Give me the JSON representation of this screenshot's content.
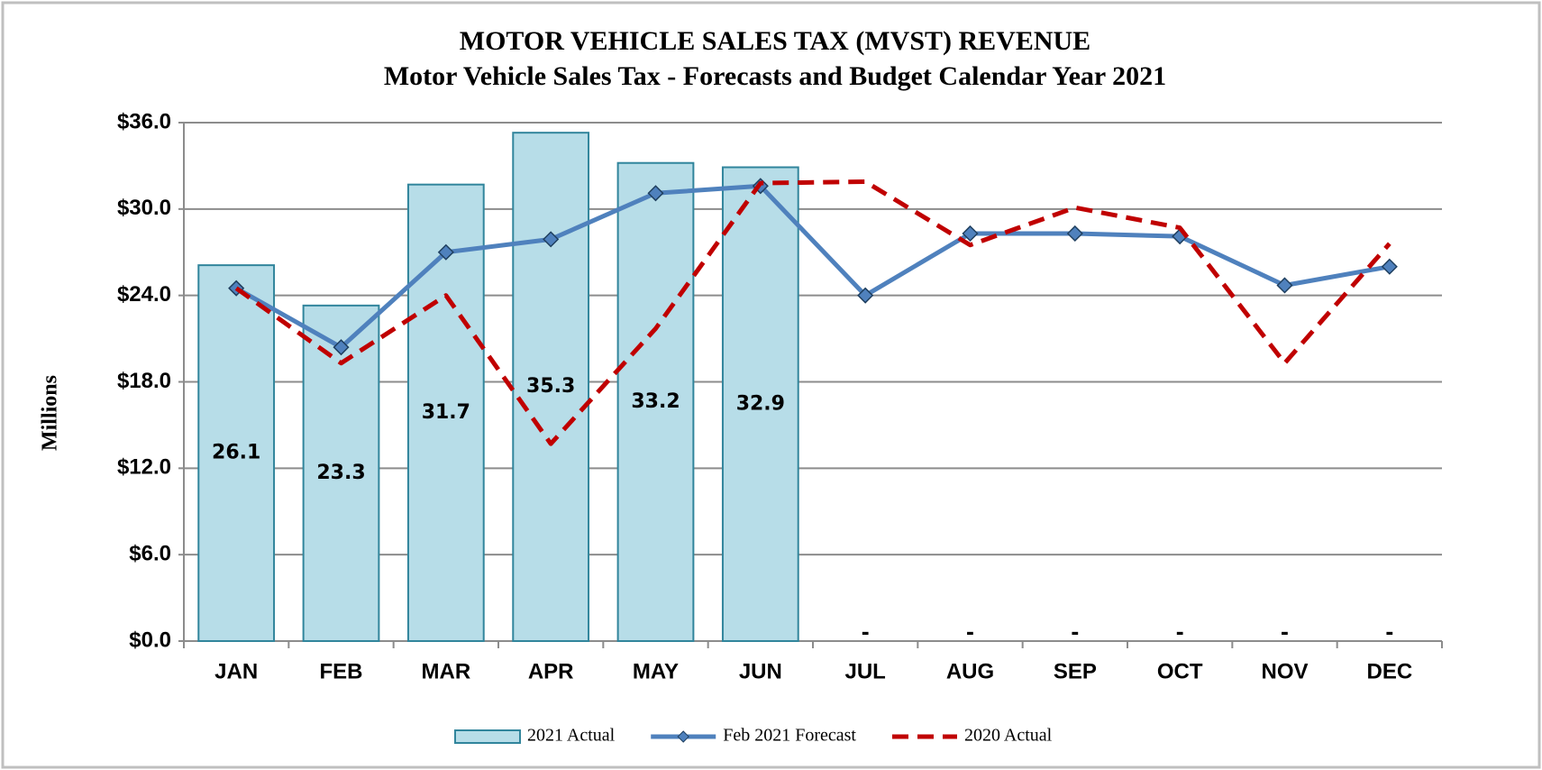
{
  "chart_data": {
    "type": "bar_line",
    "title": "MOTOR VEHICLE SALES TAX (MVST) REVENUE",
    "subtitle": "Motor Vehicle Sales Tax - Forecasts and Budget Calendar Year 2021",
    "ylabel": "Millions",
    "categories": [
      "JAN",
      "FEB",
      "MAR",
      "APR",
      "MAY",
      "JUN",
      "JUL",
      "AUG",
      "SEP",
      "OCT",
      "NOV",
      "DEC"
    ],
    "series": [
      {
        "name": "2021 Actual",
        "type": "bar",
        "color": "#b7dde8",
        "edge": "#31859c",
        "values": [
          26.1,
          23.3,
          31.7,
          35.3,
          33.2,
          32.9,
          null,
          null,
          null,
          null,
          null,
          null
        ],
        "value_labels": [
          "26.1",
          "23.3",
          "31.7",
          "35.3",
          "33.2",
          "32.9",
          "-",
          "-",
          "-",
          "-",
          "-",
          "-"
        ]
      },
      {
        "name": "Feb 2021 Forecast",
        "type": "line",
        "color": "#4f81bd",
        "marker": "diamond",
        "values": [
          24.5,
          20.4,
          27.0,
          27.9,
          31.1,
          31.6,
          24.0,
          28.3,
          28.3,
          28.1,
          24.7,
          26.0
        ]
      },
      {
        "name": "2020 Actual",
        "type": "line",
        "color": "#c00000",
        "dashed": true,
        "values": [
          24.5,
          19.3,
          24.0,
          13.7,
          21.7,
          31.8,
          31.9,
          27.5,
          30.1,
          28.7,
          19.3,
          27.6
        ]
      }
    ],
    "ylim": [
      0,
      36
    ],
    "yticks": [
      {
        "value": 0,
        "label": "$0.0"
      },
      {
        "value": 6,
        "label": "$6.0"
      },
      {
        "value": 12,
        "label": "$12.0"
      },
      {
        "value": 18,
        "label": "$18.0"
      },
      {
        "value": 24,
        "label": "$24.0"
      },
      {
        "value": 30,
        "label": "$30.0"
      },
      {
        "value": 36,
        "label": "$36.0"
      }
    ],
    "grid": true,
    "legend": "bottom"
  }
}
